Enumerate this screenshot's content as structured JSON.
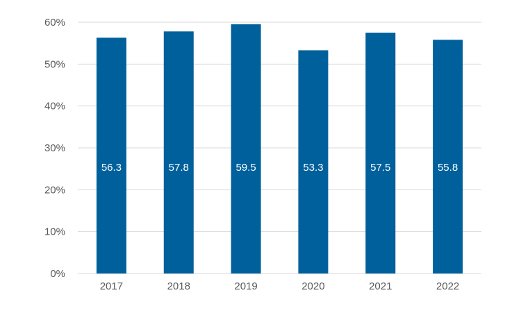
{
  "chart_data": {
    "type": "bar",
    "categories": [
      "2017",
      "2018",
      "2019",
      "2020",
      "2021",
      "2022"
    ],
    "values": [
      56.3,
      57.8,
      59.5,
      53.3,
      57.5,
      55.8
    ],
    "data_labels": [
      "56.3",
      "57.8",
      "59.5",
      "53.3",
      "57.5",
      "55.8"
    ],
    "title": "",
    "xlabel": "",
    "ylabel": "",
    "ylim": [
      0,
      60
    ],
    "yticks": [
      0,
      10,
      20,
      30,
      40,
      50,
      60
    ],
    "ytick_labels": [
      "0%",
      "10%",
      "20%",
      "30%",
      "40%",
      "50%",
      "60%"
    ],
    "grid": true,
    "legend": "none",
    "colors": {
      "bar": "#00609C",
      "data_label": "#FFFFFF",
      "gridline": "#D9D9D9",
      "axis_text": "#595959"
    }
  }
}
